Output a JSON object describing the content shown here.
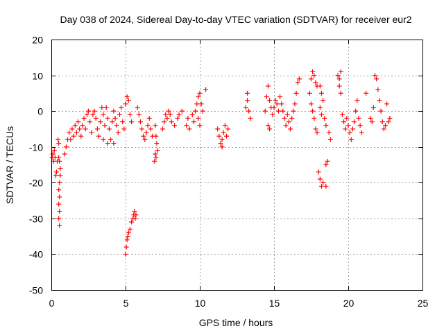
{
  "chart_data": {
    "type": "scatter",
    "title": "Day 038 of 2024, Sidereal Day-to-day VTEC variation (SDTVAR) for receiver eur2",
    "xlabel": "GPS time / hours",
    "ylabel": "SDTVAR / TECUs",
    "xlim": [
      0,
      25
    ],
    "ylim": [
      -50,
      20
    ],
    "xticks": [
      0,
      5,
      10,
      15,
      20,
      25
    ],
    "yticks": [
      -50,
      -40,
      -30,
      -20,
      -10,
      0,
      10,
      20
    ],
    "x_tick_labels": [
      "0",
      "5",
      "10",
      "15",
      "20",
      "25"
    ],
    "y_tick_labels": [
      "-50",
      "-40",
      "-30",
      "-20",
      "-10",
      "0",
      "10",
      "20"
    ],
    "grid": true,
    "marker": "+",
    "color": "#ff0000",
    "series": [
      {
        "name": "SDTVAR",
        "points": [
          [
            0.05,
            -13
          ],
          [
            0.1,
            -12
          ],
          [
            0.15,
            -14
          ],
          [
            0.2,
            -11
          ],
          [
            0.25,
            -13
          ],
          [
            0.3,
            -18
          ],
          [
            0.35,
            -17
          ],
          [
            0.4,
            -14
          ],
          [
            0.45,
            -8
          ],
          [
            0.5,
            -9
          ],
          [
            0.5,
            -13
          ],
          [
            0.55,
            -14
          ],
          [
            0.6,
            -16
          ],
          [
            0.6,
            -18
          ],
          [
            0.55,
            -20
          ],
          [
            0.5,
            -22
          ],
          [
            0.55,
            -24
          ],
          [
            0.5,
            -26
          ],
          [
            0.55,
            -28
          ],
          [
            0.5,
            -30
          ],
          [
            0.55,
            -32
          ],
          [
            0.9,
            -12
          ],
          [
            1.0,
            -10
          ],
          [
            1.1,
            -8
          ],
          [
            1.2,
            -6
          ],
          [
            1.3,
            -8
          ],
          [
            1.4,
            -5
          ],
          [
            1.5,
            -7
          ],
          [
            1.6,
            -4
          ],
          [
            1.7,
            -6
          ],
          [
            1.8,
            -3
          ],
          [
            1.9,
            -5
          ],
          [
            2.0,
            -7
          ],
          [
            2.1,
            -4
          ],
          [
            2.2,
            -2
          ],
          [
            2.3,
            -5
          ],
          [
            2.4,
            -1
          ],
          [
            2.5,
            0
          ],
          [
            2.6,
            -3
          ],
          [
            2.7,
            -6
          ],
          [
            2.8,
            -1
          ],
          [
            2.9,
            0
          ],
          [
            3.0,
            -2
          ],
          [
            3.1,
            -5
          ],
          [
            3.2,
            -7
          ],
          [
            3.3,
            -3
          ],
          [
            3.4,
            1
          ],
          [
            3.5,
            -1
          ],
          [
            3.6,
            -4
          ],
          [
            3.7,
            1
          ],
          [
            3.8,
            -2
          ],
          [
            3.9,
            -5
          ],
          [
            4.0,
            -8
          ],
          [
            4.1,
            -3
          ],
          [
            4.2,
            0
          ],
          [
            4.3,
            -2
          ],
          [
            4.4,
            -4
          ],
          [
            4.5,
            -6
          ],
          [
            4.6,
            -1
          ],
          [
            4.7,
            1
          ],
          [
            4.8,
            -3
          ],
          [
            4.9,
            -5
          ],
          [
            3.5,
            -8
          ],
          [
            3.8,
            -9
          ],
          [
            4.2,
            -9
          ],
          [
            5.0,
            -40
          ],
          [
            5.05,
            -38
          ],
          [
            5.1,
            -36
          ],
          [
            5.15,
            -35
          ],
          [
            5.2,
            -34
          ],
          [
            5.3,
            -33
          ],
          [
            5.4,
            -31
          ],
          [
            5.5,
            -30
          ],
          [
            5.55,
            -29
          ],
          [
            5.6,
            -28
          ],
          [
            5.65,
            -30
          ],
          [
            5.7,
            -29
          ],
          [
            5.0,
            2
          ],
          [
            5.1,
            4
          ],
          [
            5.2,
            3
          ],
          [
            5.3,
            -1
          ],
          [
            5.4,
            -3
          ],
          [
            5.8,
            1
          ],
          [
            5.9,
            -1
          ],
          [
            6.0,
            -3
          ],
          [
            6.1,
            -5
          ],
          [
            6.2,
            -7
          ],
          [
            6.3,
            -8
          ],
          [
            6.4,
            -6
          ],
          [
            6.5,
            -4
          ],
          [
            6.6,
            -2
          ],
          [
            6.7,
            -5
          ],
          [
            6.8,
            -7
          ],
          [
            7.0,
            -4
          ],
          [
            7.05,
            -7
          ],
          [
            7.1,
            -9
          ],
          [
            7.15,
            -11
          ],
          [
            7.0,
            -12
          ],
          [
            6.95,
            -14
          ],
          [
            7.05,
            -13
          ],
          [
            7.5,
            -5
          ],
          [
            7.6,
            -3
          ],
          [
            7.7,
            -1
          ],
          [
            7.8,
            -2
          ],
          [
            7.9,
            0
          ],
          [
            8.0,
            -1
          ],
          [
            8.1,
            -3
          ],
          [
            8.3,
            -4
          ],
          [
            8.5,
            -2
          ],
          [
            8.6,
            -1
          ],
          [
            8.8,
            0
          ],
          [
            9.1,
            -4
          ],
          [
            9.2,
            -2
          ],
          [
            9.3,
            -5
          ],
          [
            9.5,
            -1
          ],
          [
            9.6,
            -3
          ],
          [
            9.7,
            0
          ],
          [
            9.8,
            2
          ],
          [
            9.9,
            4
          ],
          [
            10.0,
            5
          ],
          [
            9.9,
            -2
          ],
          [
            10.0,
            -4
          ],
          [
            10.1,
            2
          ],
          [
            10.2,
            0
          ],
          [
            10.4,
            6
          ],
          [
            11.2,
            -5
          ],
          [
            11.3,
            -7
          ],
          [
            11.4,
            -9
          ],
          [
            11.5,
            -8
          ],
          [
            11.6,
            -6
          ],
          [
            11.7,
            -4
          ],
          [
            11.8,
            -7
          ],
          [
            11.5,
            -10
          ],
          [
            11.9,
            -5
          ],
          [
            13.1,
            1
          ],
          [
            13.2,
            3
          ],
          [
            13.3,
            0
          ],
          [
            13.4,
            -2
          ],
          [
            13.2,
            5
          ],
          [
            14.4,
            0
          ],
          [
            14.5,
            4
          ],
          [
            14.6,
            7
          ],
          [
            14.7,
            3
          ],
          [
            14.8,
            1
          ],
          [
            14.9,
            -1
          ],
          [
            14.6,
            -4
          ],
          [
            14.7,
            -5
          ],
          [
            15.0,
            1
          ],
          [
            15.1,
            3
          ],
          [
            15.2,
            2
          ],
          [
            15.3,
            0
          ],
          [
            15.4,
            4
          ],
          [
            15.5,
            2
          ],
          [
            15.6,
            0
          ],
          [
            15.7,
            -2
          ],
          [
            15.8,
            -4
          ],
          [
            15.9,
            -1
          ],
          [
            16.0,
            -3
          ],
          [
            16.1,
            -5
          ],
          [
            16.2,
            -2
          ],
          [
            16.3,
            0
          ],
          [
            16.4,
            2
          ],
          [
            16.5,
            5
          ],
          [
            16.6,
            8
          ],
          [
            16.7,
            9
          ],
          [
            17.4,
            5
          ],
          [
            17.5,
            9
          ],
          [
            17.6,
            11
          ],
          [
            17.7,
            10
          ],
          [
            17.8,
            8
          ],
          [
            17.9,
            7
          ],
          [
            17.5,
            2
          ],
          [
            17.6,
            0
          ],
          [
            17.7,
            -2
          ],
          [
            17.8,
            -5
          ],
          [
            17.9,
            -6
          ],
          [
            18.0,
            -17
          ],
          [
            18.1,
            -19
          ],
          [
            18.2,
            -21
          ],
          [
            18.3,
            -20
          ],
          [
            18.5,
            -21
          ],
          [
            18.6,
            -14
          ],
          [
            18.5,
            -15
          ],
          [
            18.1,
            7
          ],
          [
            18.2,
            5
          ],
          [
            18.3,
            3
          ],
          [
            18.1,
            1
          ],
          [
            18.2,
            -1
          ],
          [
            18.4,
            -2
          ],
          [
            18.5,
            -4
          ],
          [
            18.7,
            -6
          ],
          [
            18.8,
            -8
          ],
          [
            19.3,
            10
          ],
          [
            19.4,
            9
          ],
          [
            19.5,
            11
          ],
          [
            19.4,
            7
          ],
          [
            19.5,
            5
          ],
          [
            19.6,
            -1
          ],
          [
            19.7,
            -3
          ],
          [
            19.8,
            -5
          ],
          [
            19.9,
            -2
          ],
          [
            20.0,
            -4
          ],
          [
            20.1,
            -6
          ],
          [
            20.2,
            -8
          ],
          [
            20.3,
            -5
          ],
          [
            20.4,
            -3
          ],
          [
            20.5,
            0
          ],
          [
            20.6,
            3
          ],
          [
            20.7,
            -2
          ],
          [
            20.8,
            -4
          ],
          [
            20.9,
            -6
          ],
          [
            21.2,
            5
          ],
          [
            21.5,
            -2
          ],
          [
            21.6,
            -3
          ],
          [
            21.7,
            1
          ],
          [
            21.8,
            10
          ],
          [
            21.9,
            9
          ],
          [
            22.0,
            6
          ],
          [
            22.1,
            3
          ],
          [
            22.2,
            0
          ],
          [
            22.3,
            -3
          ],
          [
            22.4,
            -5
          ],
          [
            22.5,
            -4
          ],
          [
            22.6,
            2
          ],
          [
            22.7,
            -3
          ],
          [
            22.8,
            -2
          ]
        ]
      }
    ]
  }
}
